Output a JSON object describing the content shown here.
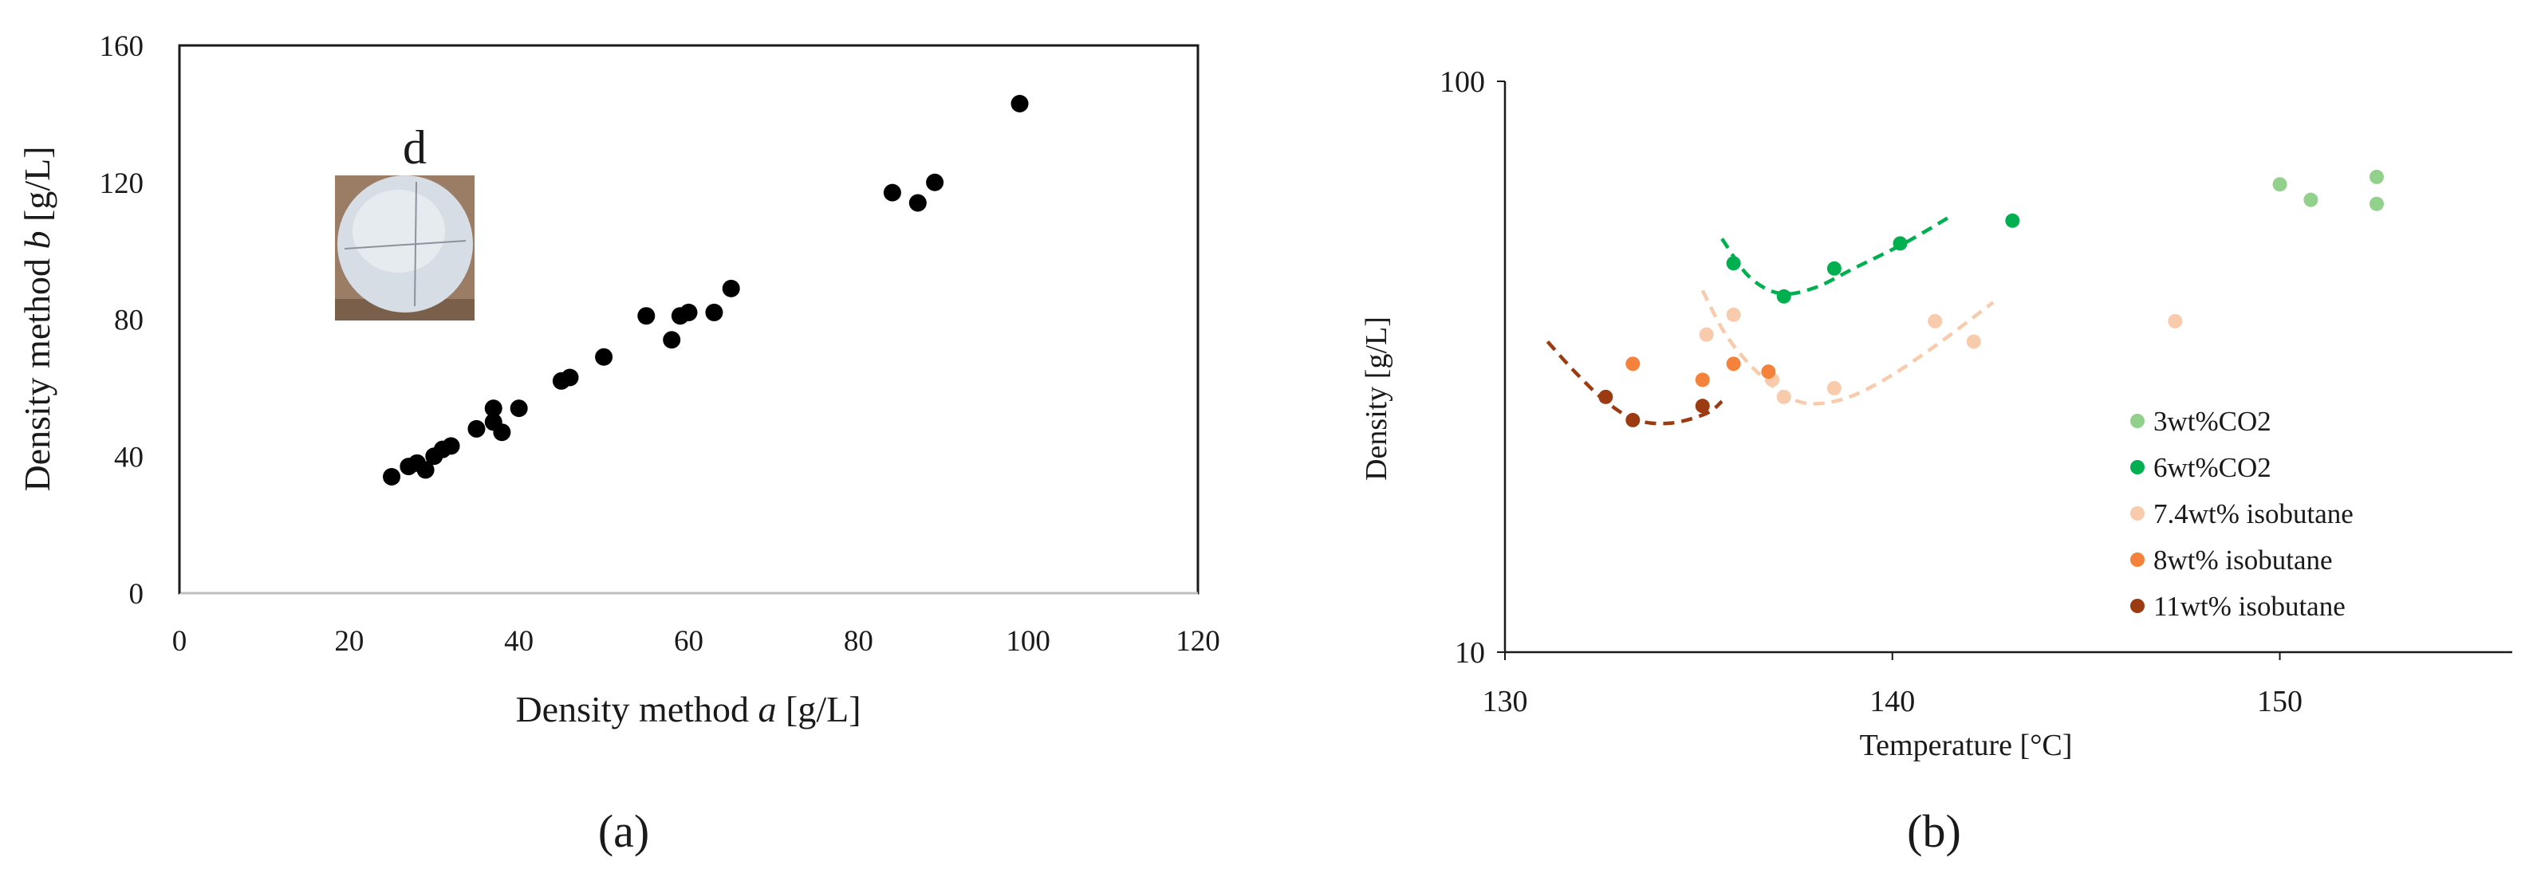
{
  "panel_labels": [
    "(a)",
    "(b)"
  ],
  "chart_data": [
    {
      "type": "scatter",
      "xlabel_prefix": "Density method ",
      "xlabel_var": "a",
      "xlabel_suffix": " [g/L]",
      "ylabel_prefix": "Density method ",
      "ylabel_var": "b",
      "ylabel_suffix": " [g/L]",
      "xlim": [
        0,
        120
      ],
      "ylim": [
        0,
        160
      ],
      "xticks": [
        "0",
        "20",
        "40",
        "60",
        "80",
        "100",
        "120"
      ],
      "yticks": [
        "0",
        "40",
        "80",
        "120",
        "160"
      ],
      "grid": false,
      "inset_label": "d",
      "point_color": "#000000",
      "points": [
        [
          25,
          34
        ],
        [
          27,
          37
        ],
        [
          28,
          38
        ],
        [
          29,
          36
        ],
        [
          30,
          40
        ],
        [
          31,
          42
        ],
        [
          32,
          43
        ],
        [
          35,
          48
        ],
        [
          37,
          50
        ],
        [
          37,
          54
        ],
        [
          38,
          47
        ],
        [
          40,
          54
        ],
        [
          45,
          62
        ],
        [
          46,
          63
        ],
        [
          50,
          69
        ],
        [
          55,
          81
        ],
        [
          58,
          74
        ],
        [
          59,
          81
        ],
        [
          60,
          82
        ],
        [
          63,
          82
        ],
        [
          65,
          89
        ],
        [
          84,
          117
        ],
        [
          87,
          114
        ],
        [
          89,
          120
        ],
        [
          99,
          143
        ]
      ]
    },
    {
      "type": "scatter",
      "xlabel": "Temperature [°C]",
      "ylabel": "Density [g/L]",
      "xlim": [
        130,
        156
      ],
      "ylim": [
        10,
        100
      ],
      "yscale": "log",
      "xticks": [
        "130",
        "140",
        "150"
      ],
      "yticks": [
        "10",
        "100"
      ],
      "grid": false,
      "legend_position": "bottom-right",
      "series": [
        {
          "name": "3wt%CO2",
          "color": "#92d18c",
          "points": [
            [
              150.0,
              66
            ],
            [
              150.8,
              62
            ],
            [
              152.5,
              68
            ],
            [
              152.5,
              61
            ]
          ],
          "fit": []
        },
        {
          "name": "6wt%CO2",
          "color": "#00b050",
          "points": [
            [
              135.9,
              48
            ],
            [
              137.2,
              42
            ],
            [
              138.5,
              47
            ],
            [
              140.2,
              52
            ],
            [
              143.1,
              57
            ]
          ],
          "fit": [
            [
              135.6,
              53
            ],
            [
              136.3,
              45.5
            ],
            [
              137.1,
              42.5
            ],
            [
              138.0,
              43.5
            ],
            [
              139.0,
              47
            ],
            [
              140.3,
              52
            ],
            [
              141.5,
              58
            ]
          ]
        },
        {
          "name": "7.4wt% isobutane",
          "color": "#f8cbad",
          "points": [
            [
              135.2,
              36
            ],
            [
              135.9,
              39
            ],
            [
              136.9,
              30
            ],
            [
              137.2,
              28
            ],
            [
              138.5,
              29
            ],
            [
              141.1,
              38
            ],
            [
              142.1,
              35
            ],
            [
              147.3,
              38
            ]
          ],
          "fit": [
            [
              135.1,
              43
            ],
            [
              135.7,
              36
            ],
            [
              136.5,
              31
            ],
            [
              137.5,
              27.6
            ],
            [
              138.5,
              27.5
            ],
            [
              139.6,
              29.5
            ],
            [
              141.0,
              34
            ],
            [
              142.6,
              41
            ]
          ]
        },
        {
          "name": "8wt% isobutane",
          "color": "#f4823a",
          "points": [
            [
              133.3,
              32
            ],
            [
              135.1,
              30
            ],
            [
              135.9,
              32
            ],
            [
              136.8,
              31
            ]
          ],
          "fit": []
        },
        {
          "name": "11wt% isobutane",
          "color": "#9c3b12",
          "points": [
            [
              132.6,
              28
            ],
            [
              133.3,
              25.5
            ],
            [
              135.1,
              27
            ]
          ],
          "fit": [
            [
              131.1,
              35
            ],
            [
              131.8,
              31
            ],
            [
              132.6,
              27.5
            ],
            [
              133.4,
              25.5
            ],
            [
              134.3,
              25.2
            ],
            [
              135.2,
              26.2
            ],
            [
              135.6,
              27.5
            ]
          ]
        }
      ]
    }
  ]
}
